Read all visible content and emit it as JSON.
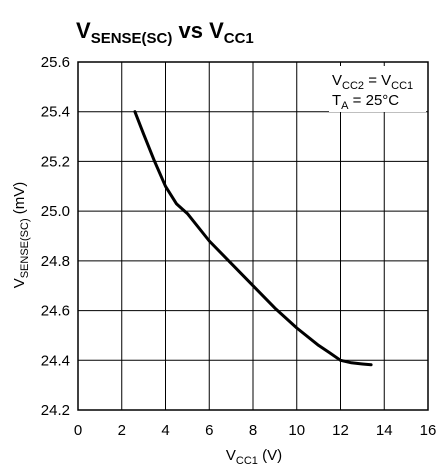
{
  "chart_data": {
    "type": "line",
    "title": {
      "main1": "V",
      "sub1": "SENSE(SC)",
      "mid": " vs ",
      "main2": "V",
      "sub2": "CC1"
    },
    "xlabel": {
      "main": "V",
      "sub": "CC1",
      "unit": " (V)"
    },
    "ylabel": {
      "main": "V",
      "sub": "SENSE(SC)",
      "unit": " (mV)"
    },
    "xlim": [
      0,
      16
    ],
    "ylim": [
      24.2,
      25.6
    ],
    "x_ticks": [
      "0",
      "2",
      "4",
      "6",
      "8",
      "10",
      "12",
      "14",
      "16"
    ],
    "y_ticks": [
      "24.2",
      "24.4",
      "24.6",
      "24.8",
      "25.0",
      "25.2",
      "25.4",
      "25.6"
    ],
    "grid": true,
    "annotations": {
      "line1": {
        "a": "V",
        "a_sub": "CC2",
        "mid": " = V",
        "b_sub": "CC1"
      },
      "line2": {
        "a": "T",
        "a_sub": "A",
        "rest": " = 25°C"
      }
    },
    "series": [
      {
        "x": [
          2.6,
          3.0,
          3.5,
          4.0,
          4.5,
          5.0,
          6.0,
          7.0,
          8.0,
          9.0,
          10.0,
          11.0,
          11.5,
          12.0,
          12.5,
          13.0,
          13.4
        ],
        "y": [
          25.4,
          25.31,
          25.2,
          25.1,
          25.03,
          24.99,
          24.88,
          24.79,
          24.7,
          24.61,
          24.53,
          24.46,
          24.43,
          24.4,
          24.39,
          24.385,
          24.382
        ]
      }
    ]
  }
}
